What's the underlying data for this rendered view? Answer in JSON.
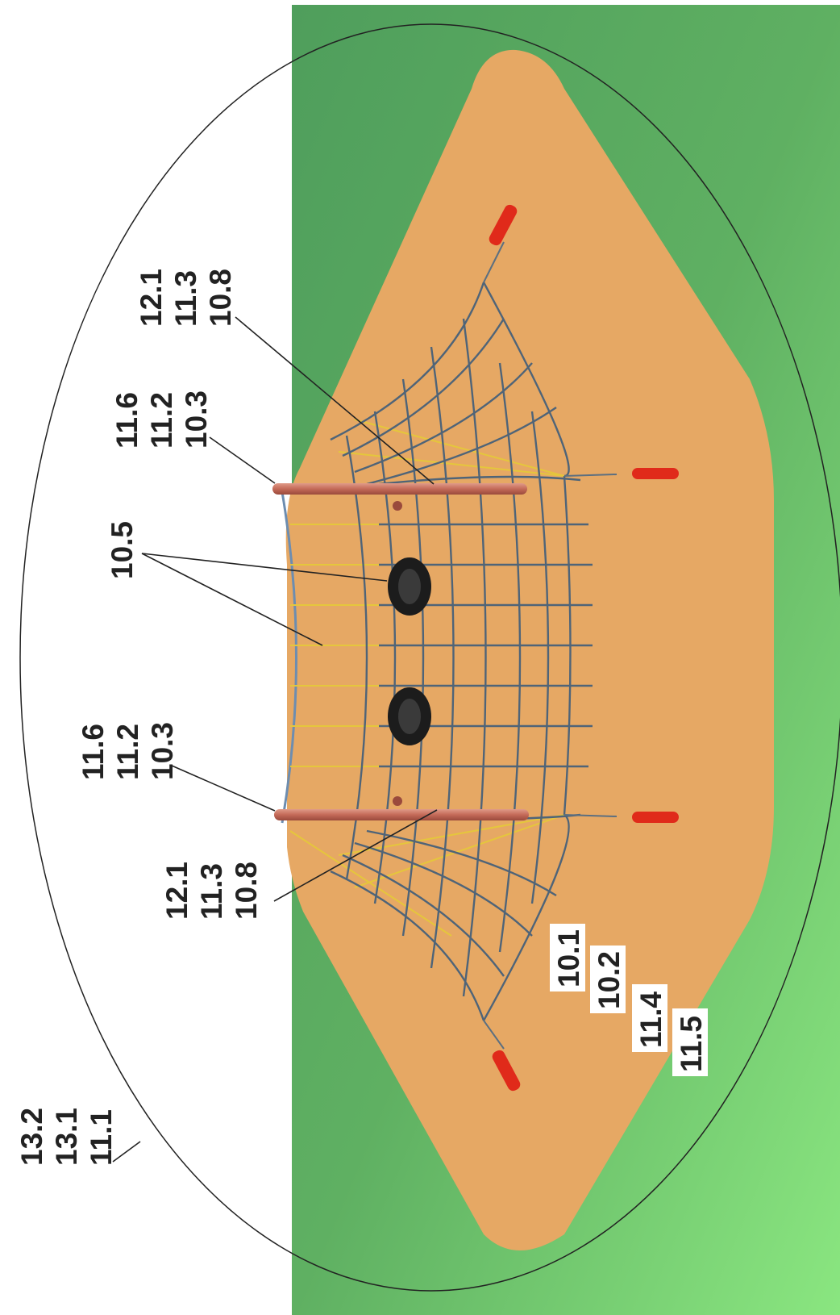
{
  "colors": {
    "grass_dark": "#5aa862",
    "grass_light": "#86e07f",
    "sand": "#e6a864",
    "post": "#c46a58",
    "anchor": "#e02a1a",
    "net_rope": "#4f6478",
    "net_yellow": "#e5c63c",
    "tire": "#1c1c1c",
    "outline": "#222222",
    "label_text": "#222222",
    "label_box": "#ffffff"
  },
  "labels": {
    "boundary": [
      "13.2",
      "13.1",
      "11.1"
    ],
    "post_top_upper": [
      "11.6",
      "11.2",
      "10.3"
    ],
    "post_base_upper": [
      "12.1",
      "11.3",
      "10.8"
    ],
    "net_element": "10.5",
    "post_top_lower": [
      "11.6",
      "11.2",
      "10.3"
    ],
    "post_base_lower": [
      "12.1",
      "11.3",
      "10.8"
    ],
    "surface": [
      "10.1",
      "10.2",
      "11.4",
      "11.5"
    ]
  }
}
